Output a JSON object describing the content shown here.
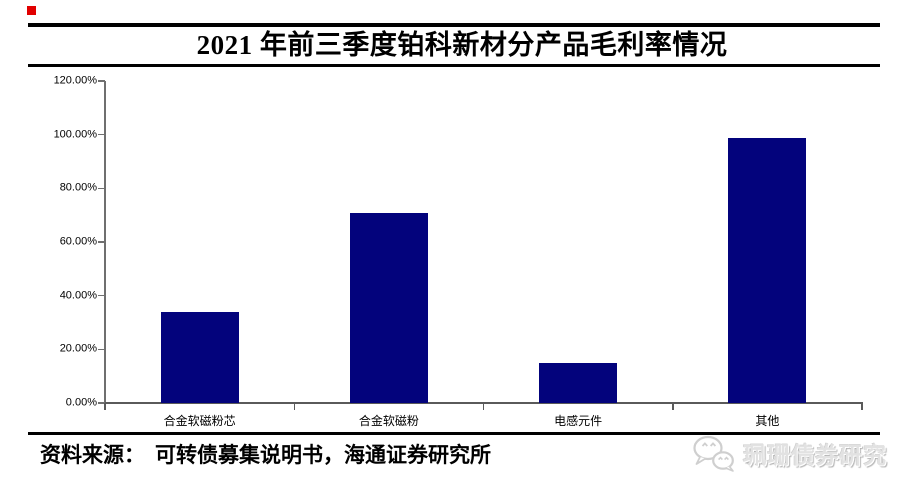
{
  "title": "2021 年前三季度铂科新材分产品毛利率情况",
  "source": {
    "prefix": "资料来源：",
    "text": "可转债募集说明书，海通证券研究所"
  },
  "watermark": {
    "icon": "wechat-icon",
    "text": "珮珊债券研究"
  },
  "colors": {
    "bar": "#03037c",
    "axis": "#6f6f6f",
    "rule": "#000000",
    "corner_mark": "#e10000",
    "watermark_text": "#e2e2e2"
  },
  "chart_data": {
    "type": "bar",
    "title": "2021 年前三季度铂科新材分产品毛利率情况",
    "categories": [
      "合金软磁粉芯",
      "合金软磁粉",
      "电感元件",
      "其他"
    ],
    "values": [
      33.9,
      70.8,
      14.9,
      98.8
    ],
    "unit": "%",
    "xlabel": "",
    "ylabel": "",
    "ylim": [
      0,
      120
    ],
    "yticks": [
      0,
      20,
      40,
      60,
      80,
      100,
      120
    ],
    "ytick_labels": [
      "0.00%",
      "20.00%",
      "40.00%",
      "60.00%",
      "80.00%",
      "100.00%",
      "120.00%"
    ],
    "grid": false,
    "legend": "none",
    "bar_color": "#03037c"
  }
}
